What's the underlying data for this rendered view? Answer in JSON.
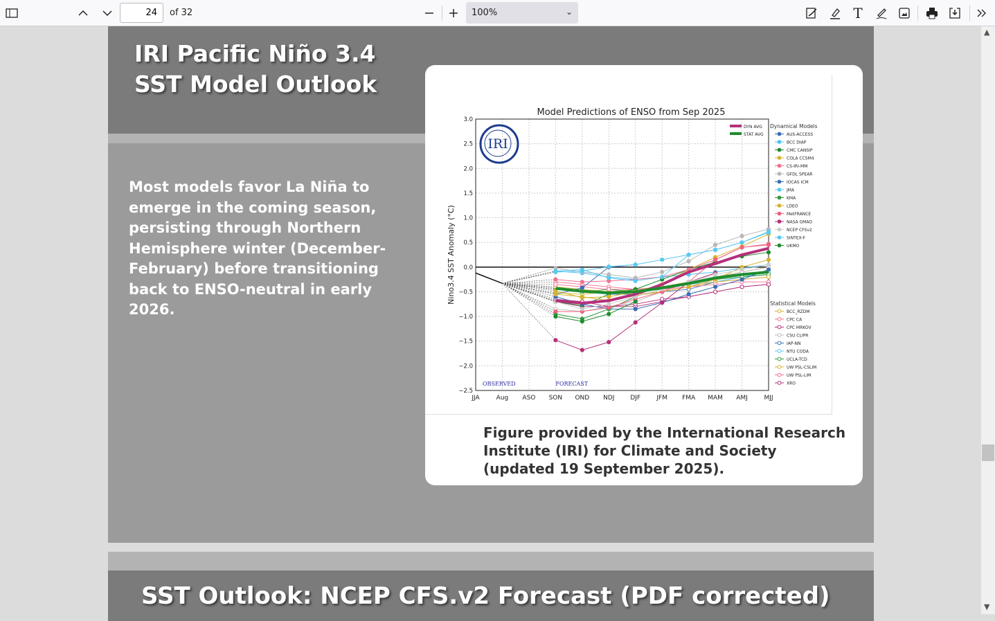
{
  "toolbar": {
    "page_number": "24",
    "page_count": "of 32",
    "zoom": "100%"
  },
  "slide1": {
    "title_line1": "IRI Pacific Niño 3.4",
    "title_line2": "SST Model Outlook",
    "body": "Most models favor La Niña to emerge in the coming season, persisting through Northern Hemisphere winter (December-February) before transitioning back to ENSO-neutral in early 2026.",
    "caption_line1": "Figure provided by the International Research",
    "caption_line2": "Institute (IRI) for Climate and Society",
    "caption_line3": "(updated 19 September 2025)."
  },
  "slide2": {
    "title": "SST Outlook: NCEP CFS.v2 Forecast (PDF corrected)"
  },
  "chart_data": {
    "type": "line",
    "title": "Model Predictions of ENSO from Sep 2025",
    "ylabel": "Nino3.4 SST Anomaly (°C)",
    "xlabel": "",
    "logo": "IRI",
    "observed_label": "OBSERVED",
    "forecast_label": "FORECAST",
    "categories": [
      "JJA",
      "Aug",
      "ASO",
      "SON",
      "OND",
      "NDJ",
      "DJF",
      "JFM",
      "FMA",
      "MAM",
      "AMJ",
      "MJJ"
    ],
    "yticks": [
      "3.0",
      "2.5",
      "2.0",
      "1.5",
      "1.0",
      "0.5",
      "0.0",
      "−0.5",
      "−1.0",
      "−1.5",
      "−2.0",
      "−2.5"
    ],
    "ylim": [
      -2.5,
      3.0
    ],
    "grid": true,
    "observed": [
      -0.12,
      -0.33
    ],
    "legend_dynamical_title": "Dynamical Models",
    "legend_statistical_title": "Statistical Models",
    "averages": [
      {
        "name": "DYN AVG",
        "color": "#b5307a",
        "values": [
          -0.68,
          -0.73,
          -0.68,
          -0.55,
          -0.35,
          -0.1,
          0.07,
          0.25,
          0.38
        ]
      },
      {
        "name": "STAT AVG",
        "color": "#1e8c2e",
        "values": [
          -0.43,
          -0.49,
          -0.52,
          -0.5,
          -0.42,
          -0.33,
          -0.22,
          -0.15,
          -0.1
        ]
      }
    ],
    "dynamical": [
      {
        "name": "AUS-ACCESS",
        "color": "#3a6fb5",
        "values": [
          -0.55,
          -0.42,
          0.0,
          0.05,
          null,
          null,
          null,
          null,
          null
        ]
      },
      {
        "name": "BCC DIAP",
        "color": "#4fc3f0",
        "values": [
          -0.08,
          -0.12,
          -0.2,
          -0.25,
          -0.2,
          -0.15,
          -0.1,
          -0.02,
          0.05
        ]
      },
      {
        "name": "CMC CANSIP",
        "color": "#1e8c2e",
        "values": [
          -0.7,
          -0.78,
          -0.55,
          -0.45,
          -0.25,
          -0.05,
          0.1,
          0.22,
          0.3
        ]
      },
      {
        "name": "COLA CCSM4",
        "color": "#d4b430",
        "values": [
          -0.48,
          -0.62,
          -0.6,
          -0.5,
          -0.35,
          -0.05,
          0.2,
          0.42,
          0.67
        ]
      },
      {
        "name": "CS-IRI-MM",
        "color": "#f07090",
        "values": [
          -0.25,
          -0.3,
          -0.28,
          -0.25,
          -0.2,
          -0.05,
          0.15,
          0.4,
          0.47
        ]
      },
      {
        "name": "GFDL SPEAR",
        "color": "#b8b8b8",
        "values": [
          -0.02,
          -0.1,
          -0.15,
          -0.22,
          -0.1,
          0.12,
          0.45,
          0.63,
          0.77
        ]
      },
      {
        "name": "IOCAS ICM",
        "color": "#3a6fb5",
        "values": [
          -0.6,
          -0.75,
          -0.85,
          -0.85,
          -0.72,
          -0.55,
          -0.4,
          -0.25,
          -0.05
        ]
      },
      {
        "name": "JMA",
        "color": "#5bc8f0",
        "values": [
          -0.1,
          -0.08,
          0.01,
          0.05,
          0.15,
          0.25,
          0.35,
          0.5,
          0.72
        ]
      },
      {
        "name": "KMA",
        "color": "#2e9a3e",
        "values": [
          -0.95,
          -1.05,
          -0.85,
          -0.6,
          null,
          null,
          null,
          null,
          null
        ]
      },
      {
        "name": "LDEO",
        "color": "#d4b430",
        "values": [
          -0.55,
          -0.6,
          -0.68,
          -0.58,
          -0.5,
          -0.4,
          -0.25,
          0.0,
          0.15
        ]
      },
      {
        "name": "MetFRANCE",
        "color": "#f06080",
        "values": [
          -0.9,
          -0.9,
          -0.82,
          -0.65,
          -0.5,
          -0.3,
          0.15,
          0.4,
          0.45
        ]
      },
      {
        "name": "NASA GMAO",
        "color": "#b5307a",
        "values": [
          -1.48,
          -1.68,
          -1.52,
          -1.12,
          -0.72,
          -0.3,
          -0.12,
          null,
          null
        ]
      },
      {
        "name": "NCEP CFSv2",
        "color": "#cccccc",
        "values": [
          -0.7,
          -0.85,
          -0.75,
          -0.6,
          -0.45,
          -0.3,
          -0.15,
          -0.05,
          0.05
        ]
      },
      {
        "name": "SINTEX-F",
        "color": "#5bc8f0",
        "values": [
          -0.08,
          -0.05,
          -0.22,
          -0.28,
          -0.2,
          0.25,
          0.35,
          0.5,
          0.7
        ]
      },
      {
        "name": "UKMO",
        "color": "#1e8c2e",
        "values": [
          -1.0,
          -1.1,
          -0.95,
          -0.7,
          null,
          null,
          null,
          null,
          null
        ]
      }
    ],
    "statistical": [
      {
        "name": "BCC_RZDM",
        "color": "#d4b430",
        "values": [
          -0.52,
          -0.55,
          -0.5,
          -0.45,
          -0.4,
          -0.3,
          -0.2,
          -0.1,
          0.0
        ]
      },
      {
        "name": "CPC CA",
        "color": "#f07090",
        "values": [
          -0.3,
          -0.35,
          -0.4,
          -0.45,
          -0.4,
          -0.35,
          -0.3,
          -0.25,
          -0.2
        ]
      },
      {
        "name": "CPC MRKOV",
        "color": "#b5307a",
        "values": [
          -0.65,
          -0.7,
          -0.8,
          -0.8,
          -0.7,
          -0.6,
          -0.5,
          -0.4,
          -0.35
        ]
      },
      {
        "name": "CSU CLIPR",
        "color": "#bbbbbb",
        "values": [
          -0.85,
          -0.9,
          -0.8,
          -0.7,
          -0.5,
          -0.3,
          -0.2,
          -0.1,
          0.0
        ]
      },
      {
        "name": "IAP-NN",
        "color": "#3a6fb5",
        "values": [
          -0.4,
          -0.5,
          -0.55,
          -0.55,
          -0.5,
          -0.45,
          -0.3,
          -0.2,
          -0.15
        ]
      },
      {
        "name": "NTU CODA",
        "color": "#5bc8f0",
        "values": [
          -0.45,
          -0.5,
          -0.55,
          -0.5,
          -0.45,
          -0.35,
          -0.3,
          -0.2,
          -0.1
        ]
      },
      {
        "name": "UCLA-TCD",
        "color": "#2e9a3e",
        "values": [
          -0.45,
          -0.5,
          -0.45,
          -0.5,
          -0.45,
          -0.35,
          -0.25,
          -0.2,
          -0.15
        ]
      },
      {
        "name": "UW PSL-CSLIM",
        "color": "#d4b430",
        "values": [
          -0.4,
          -0.45,
          -0.5,
          -0.55,
          -0.5,
          -0.4,
          -0.3,
          -0.25,
          -0.2
        ]
      },
      {
        "name": "UW PSL-LIM",
        "color": "#f07090",
        "values": [
          -0.35,
          -0.4,
          -0.45,
          -0.45,
          -0.45,
          -0.4,
          -0.35,
          -0.3,
          -0.3
        ]
      },
      {
        "name": "XRO",
        "color": "#b5307a",
        "values": [
          -0.7,
          -0.8,
          -0.8,
          -0.75,
          -0.65,
          -0.6,
          -0.5,
          -0.4,
          -0.35
        ]
      }
    ]
  }
}
